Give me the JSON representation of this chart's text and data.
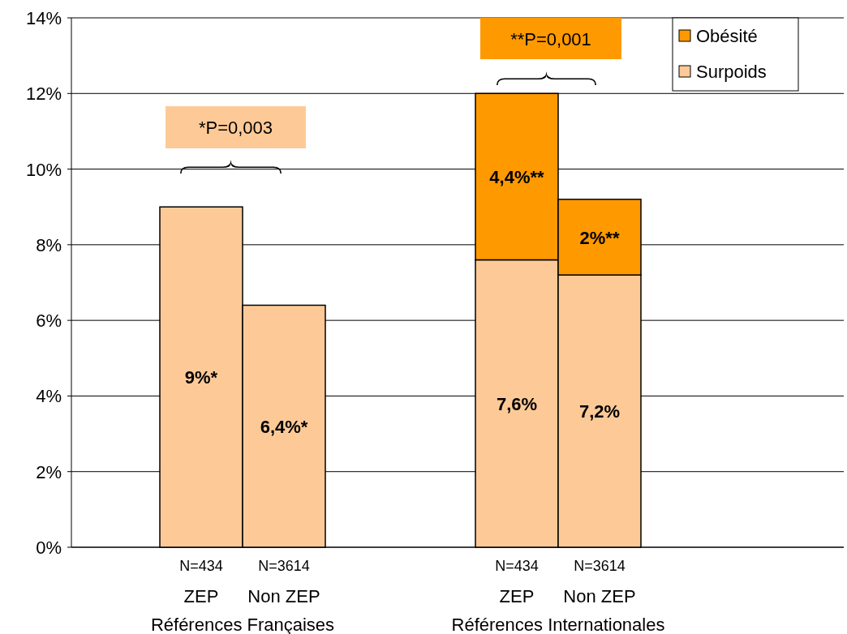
{
  "chart_data": {
    "type": "bar",
    "stacked": true,
    "categories": [
      "N=434\nZEP",
      "N=3614\nNon ZEP",
      "N=434\nZEP",
      "N=3614\nNon ZEP"
    ],
    "series": [
      {
        "name": "Surpoids",
        "color": "#fdca97",
        "values": [
          9,
          6.4,
          7.6,
          7.2
        ],
        "value_labels": [
          "9%*",
          "6,4%*",
          "7,6%",
          "7,2%"
        ]
      },
      {
        "name": "Obésité",
        "color": "#ff9900",
        "values": [
          null,
          null,
          4.4,
          2
        ],
        "value_labels": [
          null,
          null,
          "4,4%**",
          "2%**"
        ]
      }
    ],
    "ylim": [
      0,
      14
    ],
    "yticks": [
      {
        "value": 0,
        "label": "0%"
      },
      {
        "value": 2,
        "label": "2%"
      },
      {
        "value": 4,
        "label": "4%"
      },
      {
        "value": 6,
        "label": "6%"
      },
      {
        "value": 8,
        "label": "8%"
      },
      {
        "value": 10,
        "label": "10%"
      },
      {
        "value": 12,
        "label": "12%"
      },
      {
        "value": 14,
        "label": "14%"
      }
    ],
    "grid": "y",
    "legend": "top right",
    "annotations": [
      "*P=0,003",
      "**P=0,001",
      "Références Françaises",
      "Références Internationales"
    ]
  }
}
